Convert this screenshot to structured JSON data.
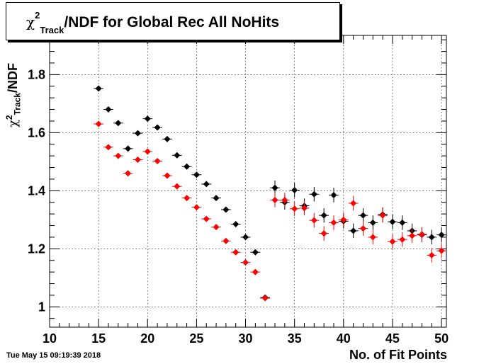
{
  "chart_data": {
    "type": "scatter",
    "title": {
      "chi": "χ",
      "sup": "2",
      "sub": "Track",
      "rest": "/NDF for Global Rec All NoHits"
    },
    "xlabel": "No. of Fit Points",
    "ylabel": {
      "chi": "χ",
      "sup": "2",
      "sub": "Track",
      "rest": "/NDF"
    },
    "xlim": [
      10,
      50.5
    ],
    "ylim": [
      0.93,
      1.935
    ],
    "xticks": [
      10,
      15,
      20,
      25,
      30,
      35,
      40,
      45,
      50
    ],
    "xtick_labels": [
      "10",
      "15",
      "20",
      "25",
      "30",
      "35",
      "40",
      "45",
      "50"
    ],
    "yticks": [
      1,
      1.2,
      1.4,
      1.6,
      1.8
    ],
    "ytick_labels": [
      "1",
      "1.2",
      "1.4",
      "1.6",
      "1.8"
    ],
    "grid": true,
    "series": [
      {
        "color": "#000000",
        "x": [
          15,
          16,
          17,
          18,
          19,
          20,
          21,
          22,
          23,
          24,
          25,
          26,
          27,
          28,
          29,
          30,
          31,
          32,
          33,
          34,
          35,
          36,
          37,
          38,
          39,
          40,
          41,
          42,
          43,
          44,
          45,
          46,
          47,
          48,
          49,
          50
        ],
        "y": [
          1.752,
          1.68,
          1.633,
          1.545,
          1.598,
          1.648,
          1.618,
          1.578,
          1.522,
          1.483,
          1.455,
          1.423,
          1.375,
          1.335,
          1.285,
          1.24,
          1.188,
          1.032,
          1.41,
          1.36,
          1.402,
          1.348,
          1.388,
          1.315,
          1.385,
          1.295,
          1.262,
          1.315,
          1.29,
          1.318,
          1.293,
          1.29,
          1.262,
          1.248,
          1.24,
          1.248
        ],
        "err": [
          0.005,
          0.005,
          0.005,
          0.005,
          0.005,
          0.005,
          0.005,
          0.005,
          0.005,
          0.005,
          0.005,
          0.005,
          0.005,
          0.005,
          0.006,
          0.008,
          0.01,
          0.005,
          0.025,
          0.025,
          0.025,
          0.025,
          0.025,
          0.025,
          0.025,
          0.025,
          0.025,
          0.025,
          0.025,
          0.025,
          0.025,
          0.025,
          0.025,
          0.025,
          0.025,
          0.025
        ]
      },
      {
        "color": "#ff0000",
        "x": [
          15,
          16,
          17,
          18,
          19,
          20,
          21,
          22,
          23,
          24,
          25,
          26,
          27,
          28,
          29,
          30,
          31,
          32,
          33,
          34,
          35,
          36,
          37,
          38,
          39,
          40,
          41,
          42,
          43,
          44,
          45,
          46,
          47,
          48,
          49,
          50
        ],
        "y": [
          1.63,
          1.55,
          1.52,
          1.46,
          1.507,
          1.535,
          1.502,
          1.452,
          1.415,
          1.375,
          1.343,
          1.303,
          1.275,
          1.227,
          1.188,
          1.153,
          1.12,
          1.03,
          1.368,
          1.368,
          1.338,
          1.34,
          1.298,
          1.253,
          1.29,
          1.3,
          1.357,
          1.27,
          1.24,
          1.315,
          1.225,
          1.232,
          1.245,
          1.25,
          1.178,
          1.193
        ],
        "err": [
          0.005,
          0.005,
          0.005,
          0.005,
          0.005,
          0.005,
          0.005,
          0.005,
          0.005,
          0.005,
          0.005,
          0.005,
          0.005,
          0.005,
          0.006,
          0.008,
          0.01,
          0.005,
          0.025,
          0.025,
          0.025,
          0.025,
          0.025,
          0.025,
          0.025,
          0.025,
          0.025,
          0.025,
          0.025,
          0.025,
          0.025,
          0.025,
          0.025,
          0.025,
          0.025,
          0.025
        ]
      }
    ]
  },
  "footer": {
    "timestamp": "Tue May 15 09:19:39 2018"
  }
}
